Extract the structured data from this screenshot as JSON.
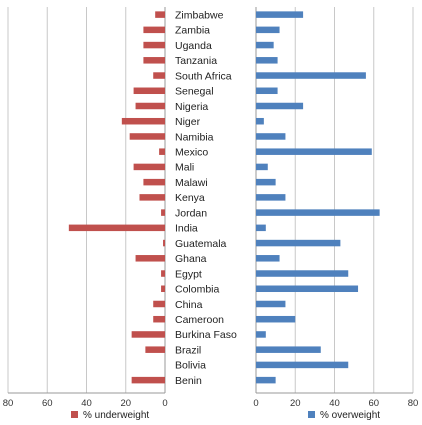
{
  "chart_data": {
    "type": "bar",
    "orientation": "horizontal",
    "categories": [
      "Zimbabwe",
      "Zambia",
      "Uganda",
      "Tanzania",
      "South Africa",
      "Senegal",
      "Nigeria",
      "Niger",
      "Namibia",
      "Mexico",
      "Mali",
      "Malawi",
      "Kenya",
      "Jordan",
      "India",
      "Guatemala",
      "Ghana",
      "Egypt",
      "Colombia",
      "China",
      "Cameroon",
      "Burkina Faso",
      "Brazil",
      "Bolivia",
      "Benin"
    ],
    "series": [
      {
        "name": "% underweight",
        "color": "#c0504d",
        "values": [
          5,
          11,
          11,
          11,
          6,
          16,
          15,
          22,
          18,
          3,
          16,
          11,
          13,
          2,
          49,
          1,
          15,
          2,
          2,
          6,
          6,
          17,
          10,
          0,
          17
        ]
      },
      {
        "name": "% overweight",
        "color": "#4f81bd",
        "values": [
          24,
          12,
          9,
          11,
          56,
          11,
          24,
          4,
          15,
          59,
          6,
          10,
          15,
          63,
          5,
          43,
          12,
          47,
          52,
          15,
          20,
          5,
          33,
          47,
          10
        ]
      }
    ],
    "left_axis": {
      "ticks": [
        "80",
        "60",
        "40",
        "20",
        "0"
      ],
      "range": [
        0,
        80
      ],
      "direction": "reversed"
    },
    "right_axis": {
      "ticks": [
        "0",
        "20",
        "40",
        "60",
        "80"
      ],
      "range": [
        0,
        80
      ]
    },
    "grid": true,
    "legend_position": "bottom"
  }
}
